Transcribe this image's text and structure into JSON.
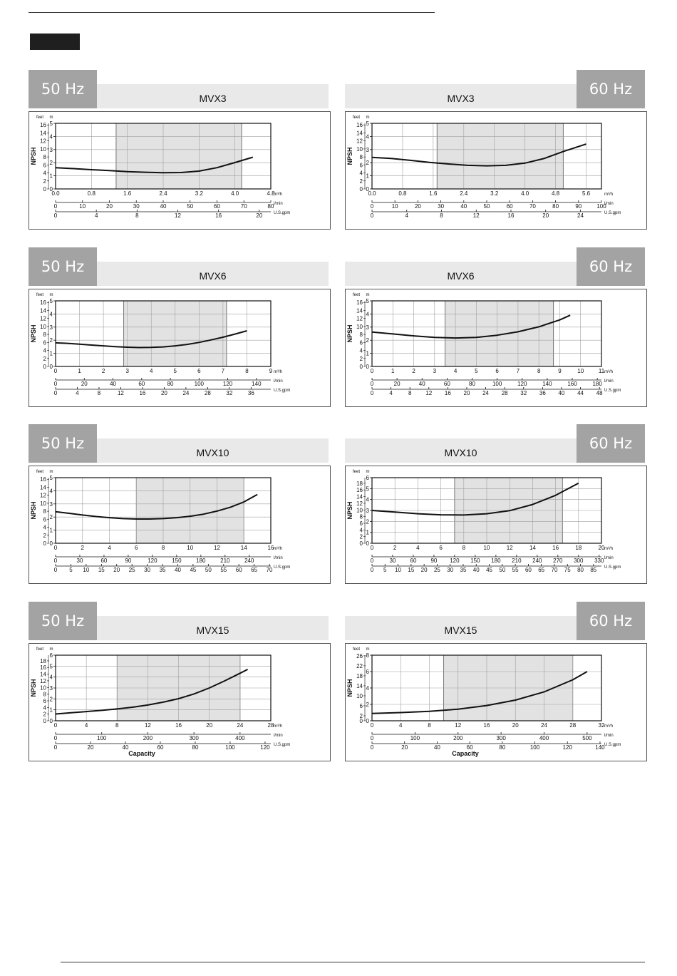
{
  "page": {
    "divider_color": "#333333",
    "tab_color": "#1f1f1f"
  },
  "unit_labels": {
    "feet": "feet",
    "m": "m",
    "npsh": "NPSH",
    "m3h": "m³/h",
    "lmin": "l/min",
    "usgpm": "U.S.gpm",
    "capacity": "Capacity"
  },
  "colors": {
    "hz_box": "#a3a3a3",
    "model_bar": "#e9e9e9",
    "band": "#e2e2e2",
    "curve": "#111111",
    "grid": "#a0a0a0"
  },
  "chart_data": [
    {
      "type": "line",
      "hz": "50 Hz",
      "model": "MVX3",
      "ylim": [
        0,
        5
      ],
      "y_ticks_m": [
        0,
        1,
        2,
        3,
        4,
        5
      ],
      "y_ticks_feet": [
        0,
        2,
        4,
        6,
        8,
        10,
        12,
        14,
        16
      ],
      "feet_max": 16.4,
      "xlim": [
        0,
        4.8
      ],
      "x_ticks": [
        0,
        0.8,
        1.6,
        2.4,
        3.2,
        4.0,
        4.8
      ],
      "x_tick_labels": [
        "0.0",
        "0.8",
        "1.6",
        "2.4",
        "3.2",
        "4.0",
        "4.8"
      ],
      "lmin_ticks": [
        0,
        10,
        20,
        30,
        40,
        50,
        60,
        70,
        80
      ],
      "lmin_max": 80,
      "gpm_ticks": [
        0,
        4,
        8,
        12,
        16,
        20
      ],
      "gpm_max": 21.13,
      "band": [
        1.35,
        4.15
      ],
      "show_capacity": false,
      "x": [
        0,
        0.4,
        0.8,
        1.2,
        1.6,
        2.0,
        2.4,
        2.8,
        3.2,
        3.6,
        4.0,
        4.4
      ],
      "y": [
        1.62,
        1.55,
        1.47,
        1.4,
        1.32,
        1.27,
        1.24,
        1.25,
        1.36,
        1.62,
        2.01,
        2.42
      ]
    },
    {
      "type": "line",
      "hz": "60 Hz",
      "model": "MVX3",
      "ylim": [
        0,
        5
      ],
      "y_ticks_m": [
        0,
        1,
        2,
        3,
        4,
        5
      ],
      "y_ticks_feet": [
        0,
        2,
        4,
        6,
        8,
        10,
        12,
        14,
        16
      ],
      "feet_max": 16.4,
      "xlim": [
        0,
        6.0
      ],
      "x_ticks": [
        0,
        0.8,
        1.6,
        2.4,
        3.2,
        4.0,
        4.8,
        5.6
      ],
      "x_tick_labels": [
        "0.0",
        "0.8",
        "1.6",
        "2.4",
        "3.2",
        "4.0",
        "4.8",
        "5.6"
      ],
      "lmin_ticks": [
        0,
        10,
        20,
        30,
        40,
        50,
        60,
        70,
        80,
        90,
        100
      ],
      "lmin_max": 100,
      "gpm_ticks": [
        0,
        4,
        8,
        12,
        16,
        20,
        24
      ],
      "gpm_max": 26.42,
      "band": [
        1.7,
        5.0
      ],
      "show_capacity": false,
      "x": [
        0,
        0.5,
        1.0,
        1.5,
        2.0,
        2.5,
        3.0,
        3.5,
        4.0,
        4.5,
        5.0,
        5.6
      ],
      "y": [
        2.4,
        2.32,
        2.18,
        2.02,
        1.9,
        1.8,
        1.76,
        1.8,
        1.97,
        2.32,
        2.85,
        3.42
      ]
    },
    {
      "type": "line",
      "hz": "50 Hz",
      "model": "MVX6",
      "ylim": [
        0,
        5
      ],
      "y_ticks_m": [
        0,
        1,
        2,
        3,
        4,
        5
      ],
      "y_ticks_feet": [
        0,
        2,
        4,
        6,
        8,
        10,
        12,
        14,
        16
      ],
      "feet_max": 16.4,
      "xlim": [
        0,
        9
      ],
      "x_ticks": [
        0,
        1,
        2,
        3,
        4,
        5,
        6,
        7,
        8,
        9
      ],
      "x_tick_labels": [
        "0",
        "1",
        "2",
        "3",
        "4",
        "5",
        "6",
        "7",
        "8",
        "9"
      ],
      "lmin_ticks": [
        0,
        20,
        40,
        60,
        80,
        100,
        120,
        140
      ],
      "lmin_max": 150,
      "gpm_ticks": [
        0,
        4,
        8,
        12,
        16,
        20,
        24,
        28,
        32,
        36
      ],
      "gpm_max": 39.63,
      "band": [
        2.85,
        7.15
      ],
      "show_capacity": false,
      "x": [
        0,
        0.5,
        1,
        1.5,
        2,
        2.5,
        3,
        3.5,
        4,
        4.5,
        5,
        5.5,
        6,
        6.5,
        7,
        7.5,
        8
      ],
      "y": [
        1.8,
        1.76,
        1.7,
        1.63,
        1.57,
        1.51,
        1.47,
        1.44,
        1.45,
        1.49,
        1.57,
        1.68,
        1.83,
        2.02,
        2.23,
        2.47,
        2.72
      ]
    },
    {
      "type": "line",
      "hz": "60 Hz",
      "model": "MVX6",
      "ylim": [
        0,
        5
      ],
      "y_ticks_m": [
        0,
        1,
        2,
        3,
        4,
        5
      ],
      "y_ticks_feet": [
        0,
        2,
        4,
        6,
        8,
        10,
        12,
        14,
        16
      ],
      "feet_max": 16.4,
      "xlim": [
        0,
        11
      ],
      "x_ticks": [
        0,
        1,
        2,
        3,
        4,
        5,
        6,
        7,
        8,
        9,
        10,
        11
      ],
      "x_tick_labels": [
        "0",
        "1",
        "2",
        "3",
        "4",
        "5",
        "6",
        "7",
        "8",
        "9",
        "10",
        "11"
      ],
      "lmin_ticks": [
        0,
        20,
        40,
        60,
        80,
        100,
        120,
        140,
        160,
        180
      ],
      "lmin_max": 183.33,
      "gpm_ticks": [
        0,
        4,
        8,
        12,
        16,
        20,
        24,
        28,
        32,
        36,
        40,
        44,
        48
      ],
      "gpm_max": 48.43,
      "band": [
        3.5,
        8.7
      ],
      "show_capacity": false,
      "x": [
        0,
        1,
        2,
        3,
        4,
        5,
        6,
        7,
        8,
        9,
        9.5
      ],
      "y": [
        2.62,
        2.48,
        2.33,
        2.22,
        2.17,
        2.22,
        2.38,
        2.64,
        3.02,
        3.55,
        3.9
      ]
    },
    {
      "type": "line",
      "hz": "50 Hz",
      "model": "MVX10",
      "ylim": [
        0,
        5
      ],
      "y_ticks_m": [
        0,
        1,
        2,
        3,
        4,
        5
      ],
      "y_ticks_feet": [
        0,
        2,
        4,
        6,
        8,
        10,
        12,
        14,
        16
      ],
      "feet_max": 16.4,
      "xlim": [
        0,
        16
      ],
      "x_ticks": [
        0,
        2,
        4,
        6,
        8,
        10,
        12,
        14,
        16
      ],
      "x_tick_labels": [
        "0",
        "2",
        "4",
        "6",
        "8",
        "10",
        "12",
        "14",
        "16"
      ],
      "lmin_ticks": [
        0,
        30,
        60,
        90,
        120,
        150,
        180,
        210,
        240
      ],
      "lmin_max": 266.67,
      "gpm_ticks": [
        0,
        5,
        10,
        15,
        20,
        25,
        30,
        35,
        40,
        45,
        50,
        55,
        60,
        65,
        70
      ],
      "gpm_max": 70.45,
      "band": [
        6,
        14
      ],
      "show_capacity": false,
      "x": [
        0,
        1,
        2,
        3,
        4,
        5,
        6,
        7,
        8,
        9,
        10,
        11,
        12,
        13,
        14,
        15
      ],
      "y": [
        2.4,
        2.28,
        2.15,
        2.04,
        1.95,
        1.88,
        1.85,
        1.85,
        1.88,
        1.95,
        2.06,
        2.22,
        2.45,
        2.75,
        3.15,
        3.72
      ]
    },
    {
      "type": "line",
      "hz": "60 Hz",
      "model": "MVX10",
      "ylim": [
        0,
        6
      ],
      "y_ticks_m": [
        0,
        1,
        2,
        3,
        4,
        5,
        6
      ],
      "y_ticks_feet": [
        0,
        2,
        4,
        6,
        8,
        10,
        12,
        14,
        16,
        18
      ],
      "feet_max": 19.69,
      "xlim": [
        0,
        20
      ],
      "x_ticks": [
        0,
        2,
        4,
        6,
        8,
        10,
        12,
        14,
        16,
        18,
        20
      ],
      "x_tick_labels": [
        "0",
        "2",
        "4",
        "6",
        "8",
        "10",
        "12",
        "14",
        "16",
        "18",
        "20"
      ],
      "lmin_ticks": [
        0,
        30,
        60,
        90,
        120,
        150,
        180,
        210,
        240,
        270,
        300,
        330
      ],
      "lmin_max": 333.33,
      "gpm_ticks": [
        0,
        5,
        10,
        15,
        20,
        25,
        30,
        35,
        40,
        45,
        50,
        55,
        60,
        65,
        70,
        75,
        80,
        85
      ],
      "gpm_max": 88.06,
      "band": [
        7.2,
        16.6
      ],
      "show_capacity": false,
      "x": [
        0,
        2,
        4,
        6,
        8,
        10,
        12,
        14,
        16,
        18
      ],
      "y": [
        3.0,
        2.85,
        2.7,
        2.6,
        2.58,
        2.7,
        2.98,
        3.55,
        4.38,
        5.5
      ]
    },
    {
      "type": "line",
      "hz": "50 Hz",
      "model": "MVX15",
      "ylim": [
        0,
        6
      ],
      "y_ticks_m": [
        0,
        1,
        2,
        3,
        4,
        5,
        6
      ],
      "y_ticks_feet": [
        0,
        4,
        8,
        12,
        16
      ],
      "y_ticks_feet_labeled": [
        0,
        2,
        4,
        6,
        8,
        10,
        12,
        14,
        16,
        18
      ],
      "feet_max": 19.69,
      "xlim": [
        0,
        28
      ],
      "x_ticks": [
        0,
        4,
        8,
        12,
        16,
        20,
        24,
        28
      ],
      "x_tick_labels": [
        "0",
        "4",
        "8",
        "12",
        "16",
        "20",
        "24",
        "28"
      ],
      "lmin_ticks": [
        0,
        100,
        200,
        300,
        400
      ],
      "lmin_max": 466.67,
      "gpm_ticks": [
        0,
        20,
        40,
        60,
        80,
        100,
        120
      ],
      "gpm_max": 123.28,
      "band": [
        8,
        24
      ],
      "show_capacity": true,
      "x": [
        0,
        2,
        4,
        6,
        8,
        10,
        12,
        14,
        16,
        18,
        20,
        22,
        24,
        25
      ],
      "y": [
        0.62,
        0.74,
        0.84,
        0.95,
        1.08,
        1.24,
        1.44,
        1.7,
        2.02,
        2.45,
        3.0,
        3.65,
        4.35,
        4.7
      ]
    },
    {
      "type": "line",
      "hz": "60 Hz",
      "model": "MVX15",
      "ylim": [
        0,
        8
      ],
      "y_ticks_m": [
        0,
        2,
        4,
        6,
        8
      ],
      "y_ticks_feet": [
        0,
        2,
        6,
        10,
        14,
        18,
        22,
        26
      ],
      "feet_max": 26.25,
      "xlim": [
        0,
        32
      ],
      "x_ticks": [
        0,
        4,
        8,
        12,
        16,
        20,
        24,
        28,
        32
      ],
      "x_tick_labels": [
        "0",
        "4",
        "8",
        "12",
        "16",
        "20",
        "24",
        "28",
        "32"
      ],
      "lmin_ticks": [
        0,
        100,
        200,
        300,
        400,
        500
      ],
      "lmin_max": 533.33,
      "gpm_ticks": [
        0,
        20,
        40,
        60,
        80,
        100,
        120,
        140
      ],
      "gpm_max": 140.89,
      "band": [
        10,
        28
      ],
      "show_capacity": true,
      "x": [
        0,
        4,
        8,
        12,
        16,
        20,
        24,
        28,
        30
      ],
      "y": [
        0.9,
        1.0,
        1.16,
        1.42,
        1.86,
        2.52,
        3.52,
        5.0,
        6.0
      ]
    }
  ]
}
